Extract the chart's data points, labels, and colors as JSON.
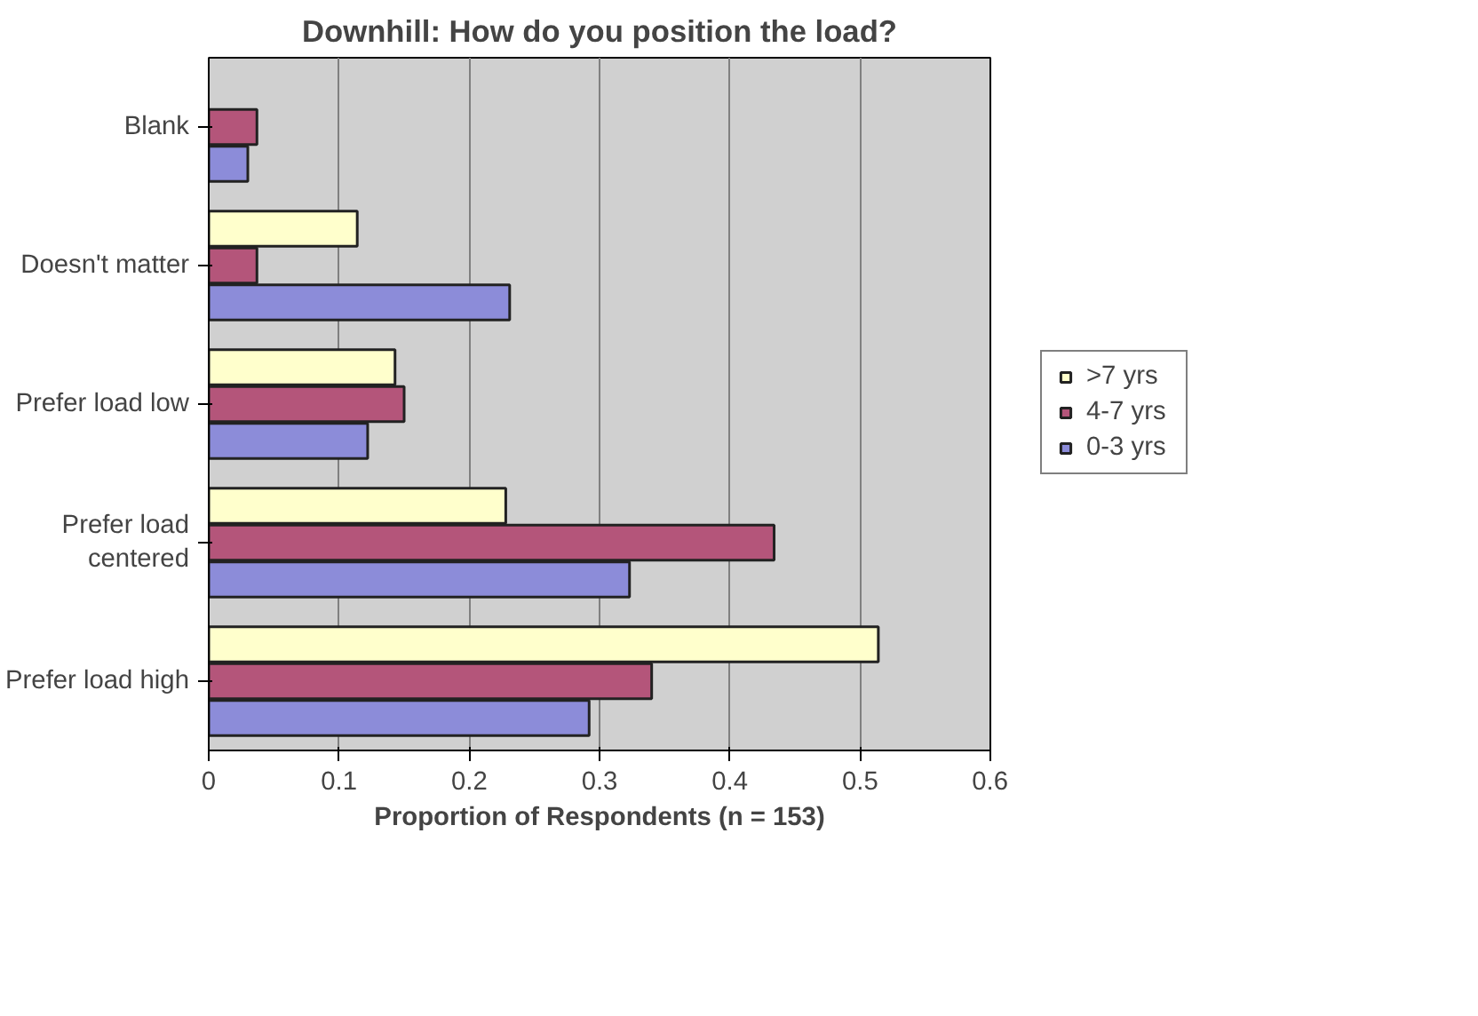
{
  "chart_data": {
    "type": "bar",
    "orientation": "horizontal",
    "title": "Downhill: How do you position the load?",
    "xlabel": "Proportion of Respondents (n = 153)",
    "categories": [
      "Blank",
      "Doesn't matter",
      "Prefer load low",
      "Prefer load centered",
      "Prefer load high"
    ],
    "series": [
      {
        "name": ">7 yrs",
        "color": "#ffffcc",
        "values": [
          null,
          0.114,
          0.143,
          0.228,
          0.514
        ]
      },
      {
        "name": "4-7 yrs",
        "color": "#b4557a",
        "values": [
          0.037,
          0.037,
          0.15,
          0.434,
          0.34
        ]
      },
      {
        "name": "0-3 yrs",
        "color": "#8c8cd9",
        "values": [
          0.03,
          0.231,
          0.122,
          0.323,
          0.292
        ]
      }
    ],
    "xlim": [
      0,
      0.6
    ],
    "xticks": [
      0,
      0.1,
      0.2,
      0.3,
      0.4,
      0.5,
      0.6
    ],
    "grid": "x",
    "legend": "right"
  }
}
